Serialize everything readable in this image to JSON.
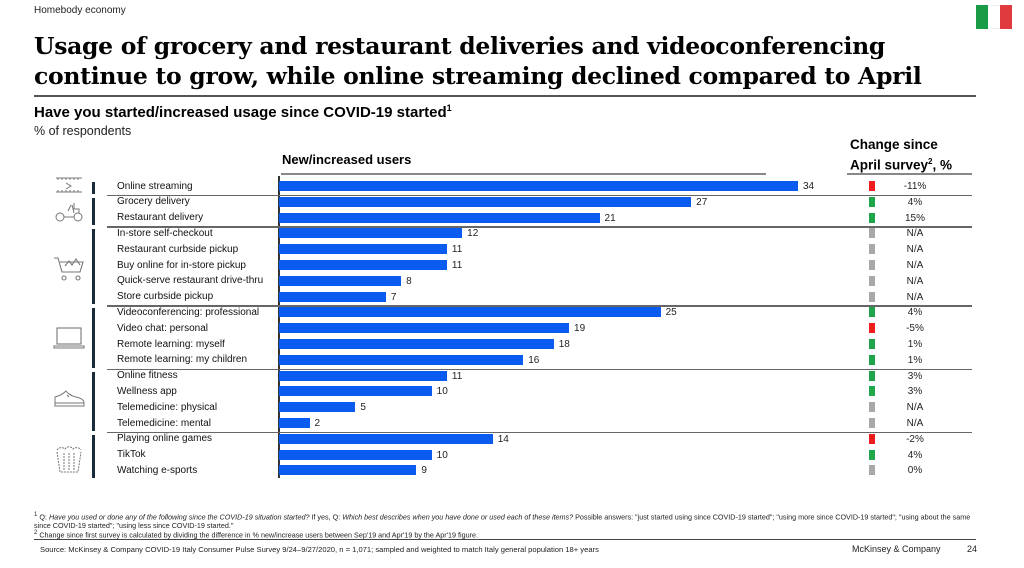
{
  "header": {
    "section": "Homebody economy",
    "title": "Usage of grocery and restaurant deliveries and videoconferencing continue to grow, while online streaming declined compared to April",
    "flag": {
      "name": "Italy",
      "colors": [
        "#1a9b45",
        "#ffffff",
        "#e03a3e"
      ]
    }
  },
  "chart_meta": {
    "subtitle": "Have you started/increased usage since COVID-19 started",
    "subtitle_footnote": "1",
    "unit": "% of respondents",
    "bars_header": "New/increased users",
    "change_header_line1": "Change since",
    "change_header_line2": "April survey",
    "change_header_footnote": "2",
    "change_header_suffix": ", %"
  },
  "colors": {
    "bar": "#0a5cf0",
    "increase": "#1fa54a",
    "decrease": "#ee1c1c",
    "neutral": "#a8a8a8"
  },
  "chart_data": {
    "type": "bar",
    "orientation": "horizontal",
    "title": "Have you started/increased usage since COVID-19 started",
    "xlabel": "New/increased users",
    "ylabel": "",
    "unit": "% of respondents",
    "xlim": [
      0,
      34
    ],
    "grid": false,
    "groups": [
      {
        "icon": "tv-streaming-icon",
        "items": [
          0
        ]
      },
      {
        "icon": "delivery-scooter-icon",
        "items": [
          1,
          2
        ]
      },
      {
        "icon": "shopping-cart-icon",
        "items": [
          3,
          4,
          5,
          6,
          7
        ]
      },
      {
        "icon": "laptop-icon",
        "items": [
          8,
          9,
          10,
          11
        ]
      },
      {
        "icon": "sneaker-icon",
        "items": [
          12,
          13,
          14,
          15
        ]
      },
      {
        "icon": "popcorn-icon",
        "items": [
          16,
          17,
          18
        ]
      }
    ],
    "categories": [
      "Online streaming",
      "Grocery delivery",
      "Restaurant delivery",
      "In-store self-checkout",
      "Restaurant curbside pickup",
      "Buy online for in-store pickup",
      "Quick-serve restaurant drive-thru",
      "Store curbside pickup",
      "Videoconferencing: professional",
      "Video chat: personal",
      "Remote learning: myself",
      "Remote learning: my children",
      "Online fitness",
      "Wellness app",
      "Telemedicine: physical",
      "Telemedicine: mental",
      "Playing online games",
      "TikTok",
      "Watching e-sports"
    ],
    "series": [
      {
        "name": "New/increased users",
        "values": [
          34,
          27,
          21,
          12,
          11,
          11,
          8,
          7,
          25,
          19,
          18,
          16,
          11,
          10,
          5,
          2,
          14,
          10,
          9
        ]
      },
      {
        "name": "Change since April survey, %",
        "values": [
          "-11%",
          "4%",
          "15%",
          "N/A",
          "N/A",
          "N/A",
          "N/A",
          "N/A",
          "4%",
          "-5%",
          "1%",
          "1%",
          "3%",
          "3%",
          "N/A",
          "N/A",
          "-2%",
          "4%",
          "0%"
        ],
        "status": [
          "decrease",
          "increase",
          "increase",
          "neutral",
          "neutral",
          "neutral",
          "neutral",
          "neutral",
          "increase",
          "decrease",
          "increase",
          "increase",
          "increase",
          "increase",
          "neutral",
          "neutral",
          "decrease",
          "increase",
          "neutral"
        ]
      }
    ]
  },
  "footnotes": {
    "fn1_mark": "1",
    "fn1_q1": "Q: ",
    "fn1_q1_italic": "Have you used or done any of the following since the COVID-19 situation started?",
    "fn1_q2": " If yes, Q: ",
    "fn1_q2_italic": "Which best describes when you have done or used each of these items?",
    "fn1_rest": " Possible answers: \"just started using since COVID-19 started\"; \"using more since COVID-19 started\"; \"using about the same since COVID-19 started\"; \"using less since COVID-19 started.\"",
    "fn2_mark": "2",
    "fn2": "Change since first survey is calculated by dividing the difference in % new/increase users between Sep'19 and Apr'19 by the Apr'19 figure.",
    "source": "Source: McKinsey & Company COVID-19 Italy Consumer Pulse Survey 9/24–9/27/2020, n = 1,071; sampled and weighted to match Italy general population 18+ years",
    "brand": "McKinsey & Company",
    "page": "24"
  }
}
